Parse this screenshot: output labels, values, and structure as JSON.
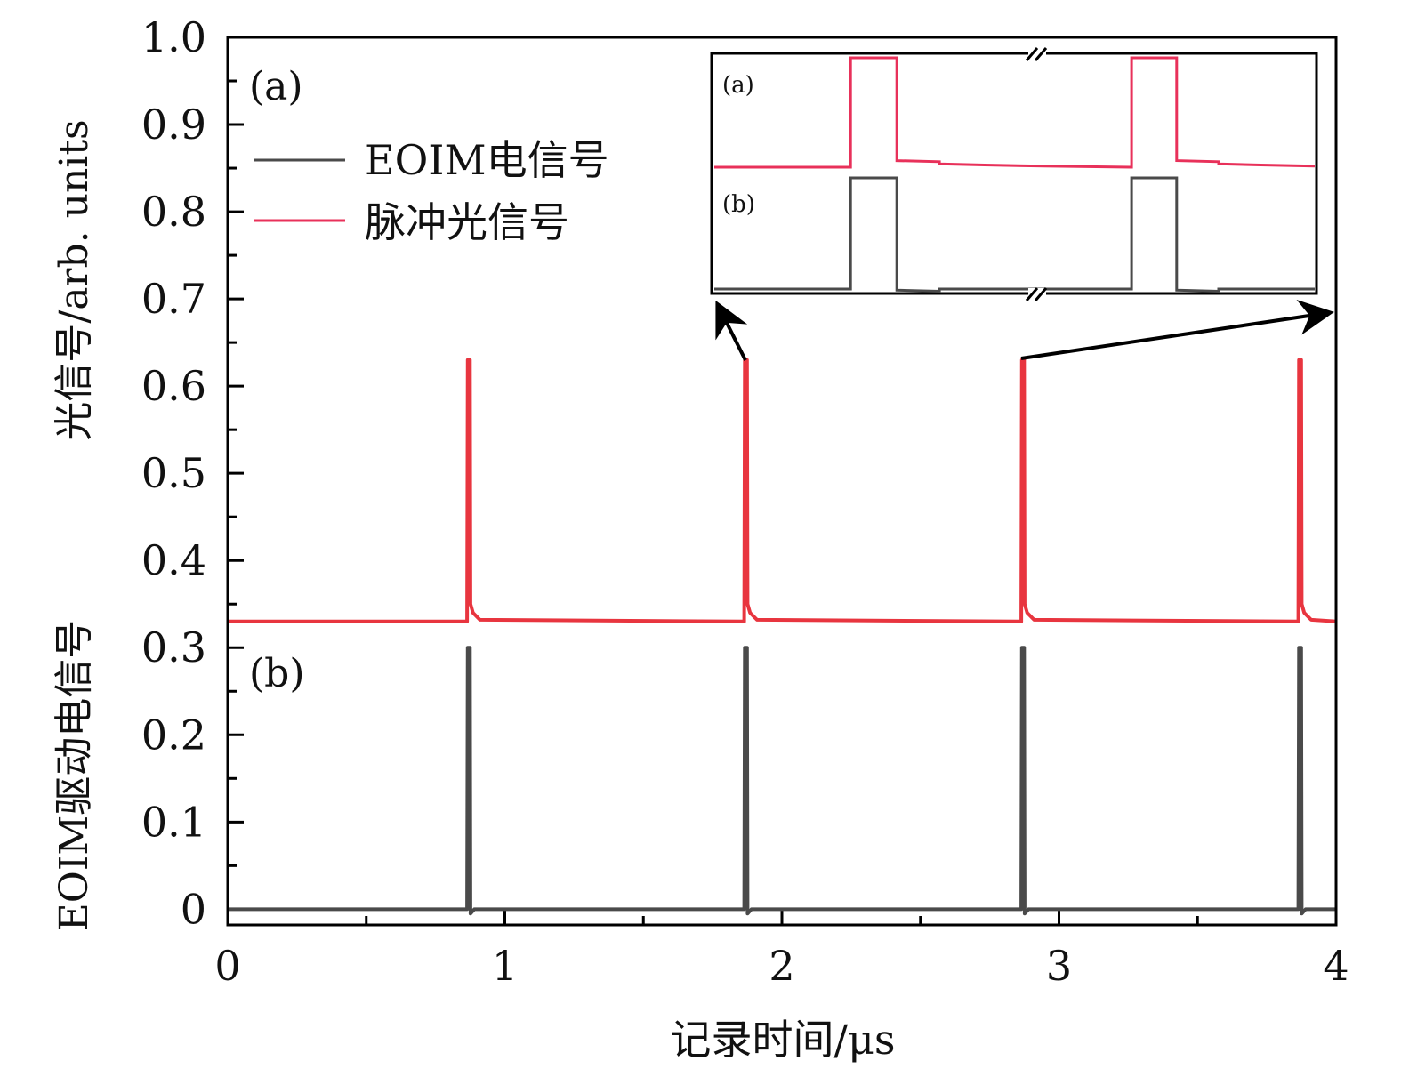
{
  "chart_data": {
    "type": "line",
    "xlabel": "记录时间/μs",
    "ylabel_top": "光信号/arb. units",
    "ylabel_bottom": "EOIM驱动电信号",
    "xlim": [
      0,
      4
    ],
    "ylim": [
      -0.018,
      1.0
    ],
    "xticks": [
      "0",
      "1",
      "2",
      "3",
      "4"
    ],
    "yticks": [
      "0",
      "0.1",
      "0.2",
      "0.3",
      "0.4",
      "0.5",
      "0.6",
      "0.7",
      "0.8",
      "0.9",
      "1.0"
    ],
    "grid": false,
    "legend_placement": "top-left",
    "panel_labels": [
      "(a)",
      "(b)"
    ],
    "series": [
      {
        "name": "EOIM电信号",
        "color": "#4a4a4a",
        "pulse_times": [
          0.87,
          1.87,
          2.87,
          3.87
        ],
        "baseline": 0.0,
        "peak": 0.3
      },
      {
        "name": "脉冲光信号",
        "color": "#e8353f",
        "pulse_times": [
          0.87,
          1.87,
          2.87,
          3.87
        ],
        "baseline": 0.33,
        "peak": 0.63
      }
    ],
    "inset": {
      "panel_labels": [
        "(a)",
        "(b)"
      ],
      "axis_break": true,
      "series": [
        {
          "color": "#e8315a",
          "points": [
            [
              0,
              0
            ],
            [
              22.7,
              0
            ],
            [
              22.7,
              1
            ],
            [
              30.4,
              1
            ],
            [
              30.4,
              0.06
            ],
            [
              37.5,
              0.05
            ],
            [
              37.5,
              0.03
            ],
            [
              45,
              0.02
            ],
            [
              55,
              0.01
            ],
            [
              69.5,
              0
            ],
            [
              69.5,
              1
            ],
            [
              77,
              1
            ],
            [
              77,
              0.06
            ],
            [
              84,
              0.05
            ],
            [
              84,
              0.03
            ],
            [
              91,
              0.02
            ],
            [
              100,
              0.01
            ]
          ]
        },
        {
          "color": "#4a4a4a",
          "points": [
            [
              0,
              0
            ],
            [
              22.7,
              0
            ],
            [
              22.7,
              1
            ],
            [
              30.4,
              1
            ],
            [
              30.4,
              -0.01
            ],
            [
              37.5,
              -0.02
            ],
            [
              37.5,
              0
            ],
            [
              69.5,
              0
            ],
            [
              69.5,
              1
            ],
            [
              77,
              1
            ],
            [
              77,
              -0.01
            ],
            [
              84,
              -0.02
            ],
            [
              84,
              0
            ],
            [
              100,
              0
            ]
          ]
        }
      ]
    }
  }
}
